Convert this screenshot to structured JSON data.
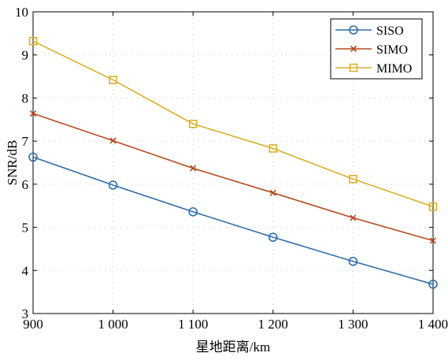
{
  "chart_data": {
    "type": "line",
    "xlabel": "星地距离/km",
    "ylabel": "SNR/dB",
    "x": [
      900,
      1000,
      1100,
      1200,
      1300,
      1400
    ],
    "x_tick_labels": [
      "900",
      "1 000",
      "1 100",
      "1 200",
      "1 300",
      "1 400"
    ],
    "xlim": [
      900,
      1400
    ],
    "ylim": [
      3,
      10
    ],
    "y_ticks": [
      3,
      4,
      5,
      6,
      7,
      8,
      9,
      10
    ],
    "y_tick_labels": [
      "3",
      "4",
      "5",
      "6",
      "7",
      "8",
      "9",
      "10"
    ],
    "grid": "dotted",
    "legend_position": "top-right",
    "series": [
      {
        "name": "SISO",
        "color": "#2f6fa8",
        "marker": "circle",
        "values": [
          6.63,
          5.98,
          5.36,
          4.77,
          4.21,
          3.68
        ]
      },
      {
        "name": "SIMO",
        "color": "#b54a1d",
        "marker": "x",
        "values": [
          7.64,
          7.01,
          6.37,
          5.8,
          5.22,
          4.69
        ]
      },
      {
        "name": "MIMO",
        "color": "#d9b02a",
        "marker": "square",
        "values": [
          9.32,
          8.42,
          7.4,
          6.83,
          6.12,
          5.48
        ]
      }
    ]
  }
}
